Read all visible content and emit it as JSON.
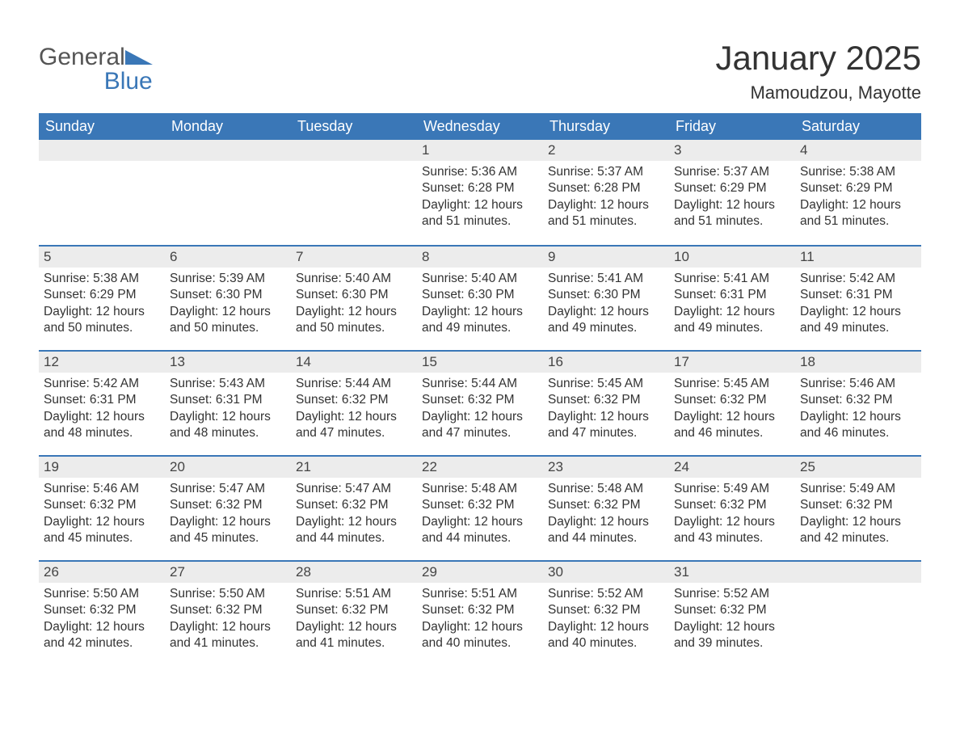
{
  "brand": {
    "general": "General",
    "blue": "Blue",
    "wedge_color": "#3a77b7"
  },
  "title": "January 2025",
  "location": "Mamoudzou, Mayotte",
  "colors": {
    "header_bg": "#3a77b7",
    "header_text": "#ffffff",
    "daynum_bg": "#ececec",
    "row_border": "#3a77b7",
    "body_text": "#333333",
    "page_bg": "#ffffff"
  },
  "typography": {
    "month_title_size_pt": 32,
    "location_size_pt": 17,
    "header_size_pt": 14,
    "daynum_size_pt": 13,
    "body_size_pt": 12
  },
  "weekdays": [
    "Sunday",
    "Monday",
    "Tuesday",
    "Wednesday",
    "Thursday",
    "Friday",
    "Saturday"
  ],
  "weeks": [
    [
      null,
      null,
      null,
      {
        "n": "1",
        "sunrise": "Sunrise: 5:36 AM",
        "sunset": "Sunset: 6:28 PM",
        "daylight": "Daylight: 12 hours and 51 minutes."
      },
      {
        "n": "2",
        "sunrise": "Sunrise: 5:37 AM",
        "sunset": "Sunset: 6:28 PM",
        "daylight": "Daylight: 12 hours and 51 minutes."
      },
      {
        "n": "3",
        "sunrise": "Sunrise: 5:37 AM",
        "sunset": "Sunset: 6:29 PM",
        "daylight": "Daylight: 12 hours and 51 minutes."
      },
      {
        "n": "4",
        "sunrise": "Sunrise: 5:38 AM",
        "sunset": "Sunset: 6:29 PM",
        "daylight": "Daylight: 12 hours and 51 minutes."
      }
    ],
    [
      {
        "n": "5",
        "sunrise": "Sunrise: 5:38 AM",
        "sunset": "Sunset: 6:29 PM",
        "daylight": "Daylight: 12 hours and 50 minutes."
      },
      {
        "n": "6",
        "sunrise": "Sunrise: 5:39 AM",
        "sunset": "Sunset: 6:30 PM",
        "daylight": "Daylight: 12 hours and 50 minutes."
      },
      {
        "n": "7",
        "sunrise": "Sunrise: 5:40 AM",
        "sunset": "Sunset: 6:30 PM",
        "daylight": "Daylight: 12 hours and 50 minutes."
      },
      {
        "n": "8",
        "sunrise": "Sunrise: 5:40 AM",
        "sunset": "Sunset: 6:30 PM",
        "daylight": "Daylight: 12 hours and 49 minutes."
      },
      {
        "n": "9",
        "sunrise": "Sunrise: 5:41 AM",
        "sunset": "Sunset: 6:30 PM",
        "daylight": "Daylight: 12 hours and 49 minutes."
      },
      {
        "n": "10",
        "sunrise": "Sunrise: 5:41 AM",
        "sunset": "Sunset: 6:31 PM",
        "daylight": "Daylight: 12 hours and 49 minutes."
      },
      {
        "n": "11",
        "sunrise": "Sunrise: 5:42 AM",
        "sunset": "Sunset: 6:31 PM",
        "daylight": "Daylight: 12 hours and 49 minutes."
      }
    ],
    [
      {
        "n": "12",
        "sunrise": "Sunrise: 5:42 AM",
        "sunset": "Sunset: 6:31 PM",
        "daylight": "Daylight: 12 hours and 48 minutes."
      },
      {
        "n": "13",
        "sunrise": "Sunrise: 5:43 AM",
        "sunset": "Sunset: 6:31 PM",
        "daylight": "Daylight: 12 hours and 48 minutes."
      },
      {
        "n": "14",
        "sunrise": "Sunrise: 5:44 AM",
        "sunset": "Sunset: 6:32 PM",
        "daylight": "Daylight: 12 hours and 47 minutes."
      },
      {
        "n": "15",
        "sunrise": "Sunrise: 5:44 AM",
        "sunset": "Sunset: 6:32 PM",
        "daylight": "Daylight: 12 hours and 47 minutes."
      },
      {
        "n": "16",
        "sunrise": "Sunrise: 5:45 AM",
        "sunset": "Sunset: 6:32 PM",
        "daylight": "Daylight: 12 hours and 47 minutes."
      },
      {
        "n": "17",
        "sunrise": "Sunrise: 5:45 AM",
        "sunset": "Sunset: 6:32 PM",
        "daylight": "Daylight: 12 hours and 46 minutes."
      },
      {
        "n": "18",
        "sunrise": "Sunrise: 5:46 AM",
        "sunset": "Sunset: 6:32 PM",
        "daylight": "Daylight: 12 hours and 46 minutes."
      }
    ],
    [
      {
        "n": "19",
        "sunrise": "Sunrise: 5:46 AM",
        "sunset": "Sunset: 6:32 PM",
        "daylight": "Daylight: 12 hours and 45 minutes."
      },
      {
        "n": "20",
        "sunrise": "Sunrise: 5:47 AM",
        "sunset": "Sunset: 6:32 PM",
        "daylight": "Daylight: 12 hours and 45 minutes."
      },
      {
        "n": "21",
        "sunrise": "Sunrise: 5:47 AM",
        "sunset": "Sunset: 6:32 PM",
        "daylight": "Daylight: 12 hours and 44 minutes."
      },
      {
        "n": "22",
        "sunrise": "Sunrise: 5:48 AM",
        "sunset": "Sunset: 6:32 PM",
        "daylight": "Daylight: 12 hours and 44 minutes."
      },
      {
        "n": "23",
        "sunrise": "Sunrise: 5:48 AM",
        "sunset": "Sunset: 6:32 PM",
        "daylight": "Daylight: 12 hours and 44 minutes."
      },
      {
        "n": "24",
        "sunrise": "Sunrise: 5:49 AM",
        "sunset": "Sunset: 6:32 PM",
        "daylight": "Daylight: 12 hours and 43 minutes."
      },
      {
        "n": "25",
        "sunrise": "Sunrise: 5:49 AM",
        "sunset": "Sunset: 6:32 PM",
        "daylight": "Daylight: 12 hours and 42 minutes."
      }
    ],
    [
      {
        "n": "26",
        "sunrise": "Sunrise: 5:50 AM",
        "sunset": "Sunset: 6:32 PM",
        "daylight": "Daylight: 12 hours and 42 minutes."
      },
      {
        "n": "27",
        "sunrise": "Sunrise: 5:50 AM",
        "sunset": "Sunset: 6:32 PM",
        "daylight": "Daylight: 12 hours and 41 minutes."
      },
      {
        "n": "28",
        "sunrise": "Sunrise: 5:51 AM",
        "sunset": "Sunset: 6:32 PM",
        "daylight": "Daylight: 12 hours and 41 minutes."
      },
      {
        "n": "29",
        "sunrise": "Sunrise: 5:51 AM",
        "sunset": "Sunset: 6:32 PM",
        "daylight": "Daylight: 12 hours and 40 minutes."
      },
      {
        "n": "30",
        "sunrise": "Sunrise: 5:52 AM",
        "sunset": "Sunset: 6:32 PM",
        "daylight": "Daylight: 12 hours and 40 minutes."
      },
      {
        "n": "31",
        "sunrise": "Sunrise: 5:52 AM",
        "sunset": "Sunset: 6:32 PM",
        "daylight": "Daylight: 12 hours and 39 minutes."
      },
      null
    ]
  ]
}
